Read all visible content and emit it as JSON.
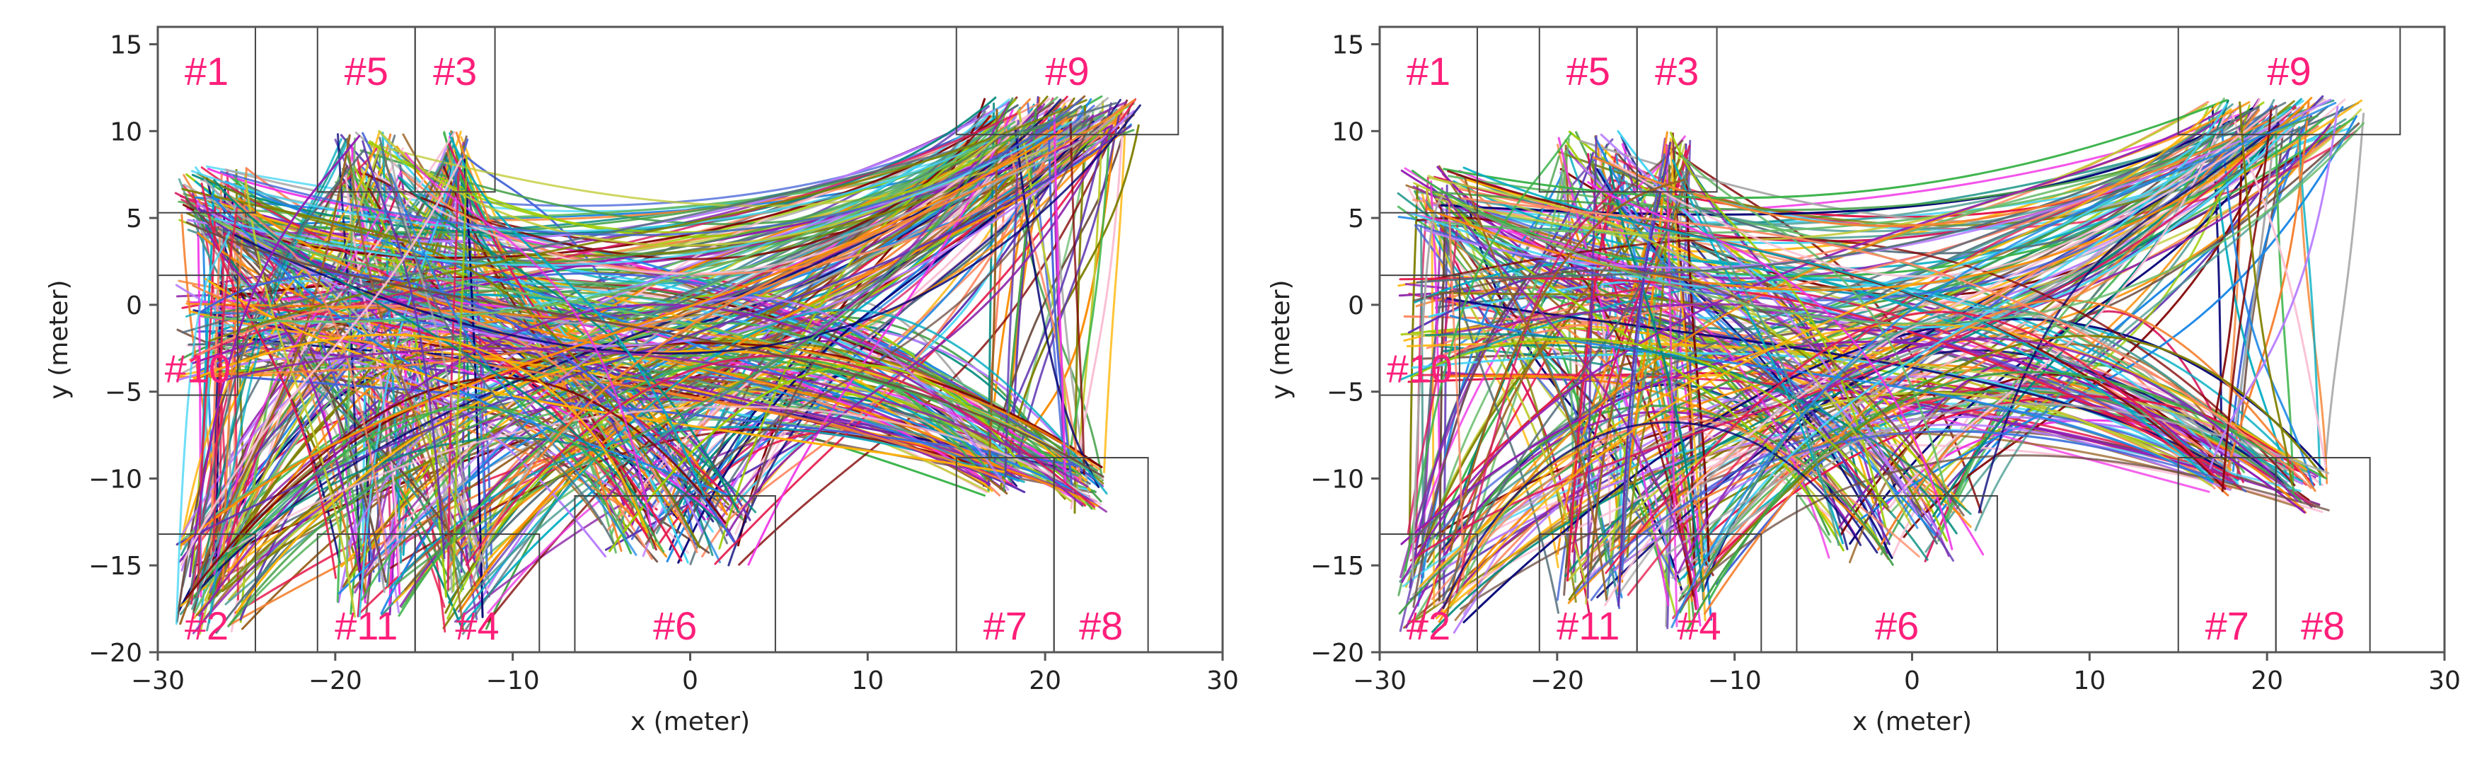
{
  "chart_data": [
    {
      "type": "line",
      "xlabel": "x (meter)",
      "ylabel": "y (meter)",
      "xlim": [
        -30,
        30
      ],
      "ylim": [
        -20,
        16
      ],
      "xticks": [
        -30,
        -20,
        -10,
        0,
        10,
        20,
        30
      ],
      "yticks": [
        15,
        10,
        5,
        0,
        -5,
        -10,
        -15,
        -20
      ],
      "grid": false,
      "legend": "none",
      "zones": [
        {
          "label": "#1",
          "x": [
            -30,
            -24.5
          ],
          "y": [
            5.3,
            16
          ]
        },
        {
          "label": "#5",
          "x": [
            -21,
            -15.5
          ],
          "y": [
            6.5,
            16
          ]
        },
        {
          "label": "#3",
          "x": [
            -15.5,
            -11
          ],
          "y": [
            6.5,
            16
          ]
        },
        {
          "label": "#9",
          "x": [
            15,
            27.5
          ],
          "y": [
            9.8,
            16
          ]
        },
        {
          "label": "#10",
          "x": [
            -30,
            -25.5
          ],
          "y": [
            -5.2,
            1.7
          ]
        },
        {
          "label": "#2",
          "x": [
            -30,
            -24.5
          ],
          "y": [
            -20,
            -13.2
          ]
        },
        {
          "label": "#11",
          "x": [
            -21,
            -15.5
          ],
          "y": [
            -20,
            -13.2
          ]
        },
        {
          "label": "#4",
          "x": [
            -15.5,
            -8.5
          ],
          "y": [
            -20,
            -13.2
          ]
        },
        {
          "label": "#6",
          "x": [
            -6.5,
            4.8
          ],
          "y": [
            -20,
            -11
          ]
        },
        {
          "label": "#7",
          "x": [
            15,
            20.5
          ],
          "y": [
            -20,
            -8.8
          ]
        },
        {
          "label": "#8",
          "x": [
            20.5,
            25.8
          ],
          "y": [
            -20,
            -8.8
          ]
        }
      ],
      "series_description": "Dense multicoloured pedestrian trajectories connecting entry/exit zones #1-#11"
    },
    {
      "type": "line",
      "xlabel": "x (meter)",
      "ylabel": "y (meter)",
      "xlim": [
        -30,
        30
      ],
      "ylim": [
        -20,
        16
      ],
      "xticks": [
        -30,
        -20,
        -10,
        0,
        10,
        20,
        30
      ],
      "yticks": [
        15,
        10,
        5,
        0,
        -5,
        -10,
        -15,
        -20
      ],
      "grid": false,
      "legend": "none",
      "zones": [
        {
          "label": "#1",
          "x": [
            -30,
            -24.5
          ],
          "y": [
            5.3,
            16
          ]
        },
        {
          "label": "#5",
          "x": [
            -21,
            -15.5
          ],
          "y": [
            6.5,
            16
          ]
        },
        {
          "label": "#3",
          "x": [
            -15.5,
            -11
          ],
          "y": [
            6.5,
            16
          ]
        },
        {
          "label": "#9",
          "x": [
            15,
            27.5
          ],
          "y": [
            9.8,
            16
          ]
        },
        {
          "label": "#10",
          "x": [
            -30,
            -25.5
          ],
          "y": [
            -5.2,
            1.7
          ]
        },
        {
          "label": "#2",
          "x": [
            -30,
            -24.5
          ],
          "y": [
            -20,
            -13.2
          ]
        },
        {
          "label": "#11",
          "x": [
            -21,
            -15.5
          ],
          "y": [
            -20,
            -13.2
          ]
        },
        {
          "label": "#4",
          "x": [
            -15.5,
            -8.5
          ],
          "y": [
            -20,
            -13.2
          ]
        },
        {
          "label": "#6",
          "x": [
            -6.5,
            4.8
          ],
          "y": [
            -20,
            -11
          ]
        },
        {
          "label": "#7",
          "x": [
            15,
            20.5
          ],
          "y": [
            -20,
            -8.8
          ]
        },
        {
          "label": "#8",
          "x": [
            20.5,
            25.8
          ],
          "y": [
            -20,
            -8.8
          ]
        }
      ],
      "series_description": "Dense multicoloured pedestrian trajectories connecting entry/exit zones #1-#11"
    }
  ],
  "colors": {
    "zone_label": "#ff1f7a",
    "frame": "#555555",
    "palette": [
      "#e6194b",
      "#3cb44b",
      "#ffb300",
      "#4363d8",
      "#f58231",
      "#911eb4",
      "#42d4f4",
      "#f032e6",
      "#9ccc00",
      "#fabed4",
      "#469990",
      "#b77cff",
      "#9a6324",
      "#800000",
      "#66bb6a",
      "#808000",
      "#ff8a65",
      "#000075",
      "#a9a9a9",
      "#1e88e5",
      "#8e24aa",
      "#00acc1",
      "#43a047",
      "#fb8c00",
      "#d81b60",
      "#5e35b1",
      "#00897b",
      "#c0ca33",
      "#6d4c41",
      "#546e7a"
    ]
  }
}
